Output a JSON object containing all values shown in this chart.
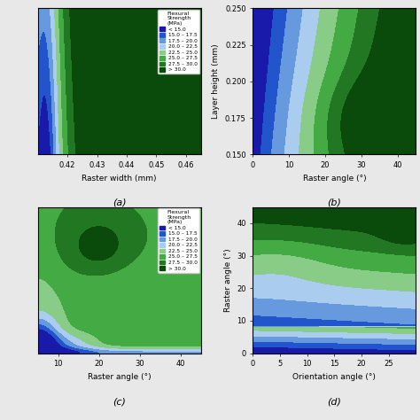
{
  "colors": [
    "#1a1aaa",
    "#2255cc",
    "#6699dd",
    "#aaccee",
    "#88cc88",
    "#44aa44",
    "#227722",
    "#0a4a0a"
  ],
  "levels": [
    0,
    15.0,
    17.5,
    20.0,
    22.5,
    25.0,
    27.5,
    30.0,
    40.0
  ],
  "legend_labels": [
    "< 15.0",
    "15.0 – 17.5",
    "17.5 – 20.0",
    "20.0 – 22.5",
    "22.5 – 25.0",
    "25.0 – 27.5",
    "27.5 – 30.0",
    "> 30.0"
  ],
  "legend_title": "Flexural\nStrength\n(MPa)",
  "subplot_labels": [
    "(a)",
    "(b)",
    "(c)",
    "(d)"
  ],
  "background_color": "#e8e8e8"
}
